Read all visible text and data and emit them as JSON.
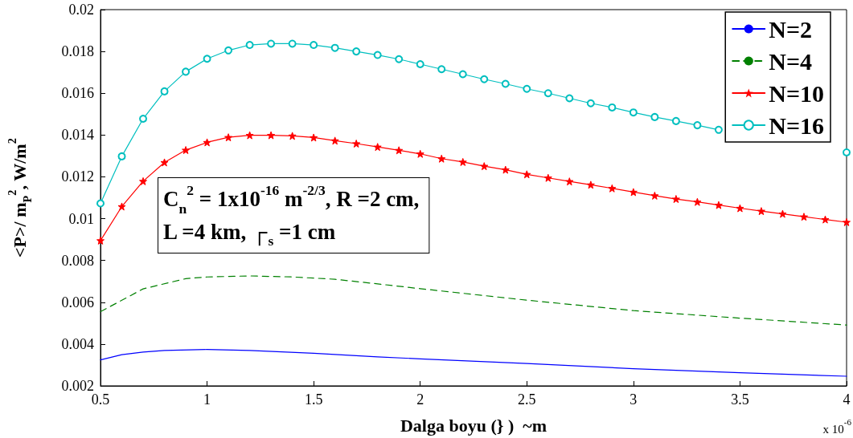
{
  "chart_data": {
    "type": "line",
    "xlabel": "Dalga boyu (} )  ~m",
    "ylabel": "<P>/ m$_{P}$$^{2}$, W/m$^{2}$",
    "annotations": [
      "C$_{n}$$^{2}$ = 1x10$^{-16}$ m$^{-2/3}$, R =2 cm,",
      "L =4 km, ┌$_{s}$ =1 cm",
      "x 10$^{-6}$"
    ],
    "xlim": [
      0.5,
      4
    ],
    "xticks": [
      0.5,
      1,
      1.5,
      2,
      2.5,
      3,
      3.5,
      4
    ],
    "ylim": [
      0.002,
      0.02
    ],
    "yticks": [
      0.002,
      0.004,
      0.006,
      0.008,
      0.01,
      0.012,
      0.014,
      0.016,
      0.018,
      0.02
    ],
    "grid": false,
    "legend": "top right",
    "series": [
      {
        "name": "N=2",
        "color": "#0000ff",
        "marker": "none",
        "line_style": "solid",
        "x": [
          0.5,
          0.6,
          0.7,
          0.8,
          1.0,
          1.2,
          1.5,
          1.8,
          2.0,
          2.5,
          3.0,
          3.5,
          4.0
        ],
        "values": [
          0.00324,
          0.00349,
          0.00362,
          0.00369,
          0.00374,
          0.00369,
          0.00356,
          0.00339,
          0.00329,
          0.00307,
          0.00282,
          0.00263,
          0.00246
        ]
      },
      {
        "name": "N=4",
        "color": "#008000",
        "marker": "none",
        "line_style": "dashed",
        "x": [
          0.5,
          0.7,
          0.9,
          1.0,
          1.2,
          1.4,
          1.6,
          1.8,
          2.0,
          2.5,
          3.0,
          3.5,
          4.0
        ],
        "values": [
          0.00555,
          0.00664,
          0.00713,
          0.00721,
          0.00726,
          0.00721,
          0.0071,
          0.00688,
          0.00665,
          0.0061,
          0.0056,
          0.00524,
          0.00491
        ]
      },
      {
        "name": "N=10",
        "color": "#ff0000",
        "marker": "star",
        "line_style": "solid",
        "x": [
          0.5,
          0.6,
          0.7,
          0.8,
          0.9,
          1.0,
          1.1,
          1.2,
          1.3,
          1.4,
          1.5,
          1.6,
          1.7,
          1.8,
          1.9,
          2.0,
          2.1,
          2.2,
          2.3,
          2.4,
          2.5,
          2.6,
          2.7,
          2.8,
          2.9,
          3.0,
          3.1,
          3.2,
          3.3,
          3.4,
          3.5,
          3.6,
          3.7,
          3.8,
          3.9,
          4.0
        ],
        "values": [
          0.00895,
          0.01058,
          0.01179,
          0.01269,
          0.01328,
          0.01365,
          0.01389,
          0.01399,
          0.01399,
          0.01396,
          0.01388,
          0.01373,
          0.01359,
          0.01343,
          0.01327,
          0.0131,
          0.01287,
          0.01271,
          0.01251,
          0.01234,
          0.01212,
          0.01195,
          0.01178,
          0.01162,
          0.01145,
          0.01127,
          0.0111,
          0.01094,
          0.0108,
          0.01065,
          0.0105,
          0.01036,
          0.01023,
          0.01009,
          0.00996,
          0.00983
        ]
      },
      {
        "name": "N=16",
        "color": "#00bfbf",
        "marker": "circle",
        "line_style": "solid",
        "x": [
          0.5,
          0.6,
          0.7,
          0.8,
          0.9,
          1.0,
          1.1,
          1.2,
          1.3,
          1.4,
          1.5,
          1.6,
          1.7,
          1.8,
          1.9,
          2.0,
          2.1,
          2.2,
          2.3,
          2.4,
          2.5,
          2.6,
          2.7,
          2.8,
          2.9,
          3.0,
          3.1,
          3.2,
          3.3,
          3.4,
          3.5,
          3.6,
          3.7,
          3.8,
          3.9,
          4.0
        ],
        "values": [
          0.01073,
          0.01298,
          0.01478,
          0.01609,
          0.01703,
          0.01765,
          0.01805,
          0.01831,
          0.01837,
          0.01837,
          0.01831,
          0.01817,
          0.018,
          0.01783,
          0.01763,
          0.01739,
          0.01715,
          0.01691,
          0.01667,
          0.01645,
          0.01621,
          0.016,
          0.01576,
          0.01552,
          0.01532,
          0.01508,
          0.01486,
          0.01467,
          0.01447,
          0.01425,
          null,
          null,
          null,
          null,
          null,
          0.01317
        ]
      }
    ]
  }
}
